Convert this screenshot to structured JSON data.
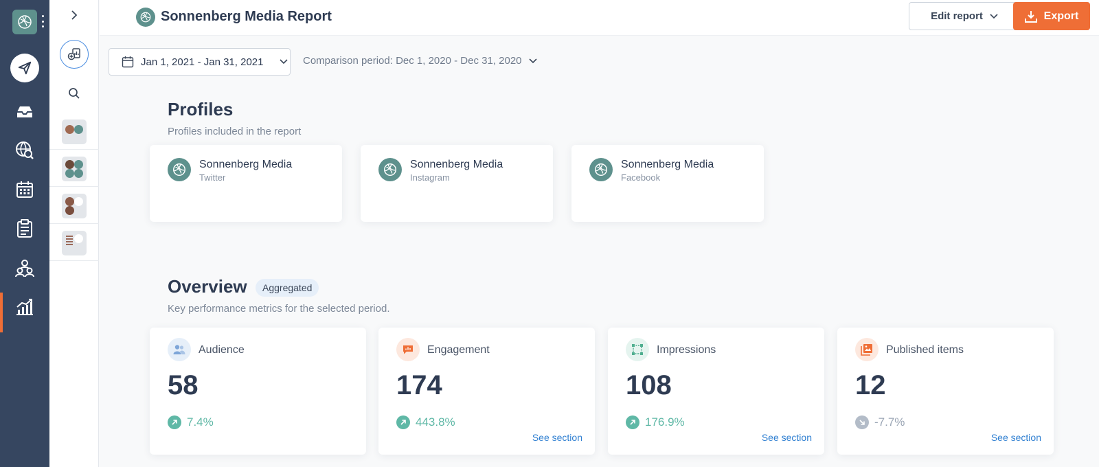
{
  "header": {
    "title": "Sonnenberg Media Report",
    "edit_label": "Edit report",
    "export_label": "Export"
  },
  "filters": {
    "date_range": "Jan 1, 2021 - Jan 31, 2021",
    "comparison": "Comparison period: Dec 1, 2020 - Dec 31, 2020"
  },
  "profiles": {
    "title": "Profiles",
    "subtitle": "Profiles included in the report",
    "items": [
      {
        "name": "Sonnenberg Media",
        "network": "Twitter"
      },
      {
        "name": "Sonnenberg Media",
        "network": "Instagram"
      },
      {
        "name": "Sonnenberg Media",
        "network": "Facebook"
      }
    ]
  },
  "overview": {
    "title": "Overview",
    "tag": "Aggregated",
    "subtitle": "Key performance metrics for the selected period.",
    "metrics": [
      {
        "label": "Audience",
        "value": "58",
        "change": "7.4%",
        "trend": "up",
        "icon": "audience-icon",
        "see_section": ""
      },
      {
        "label": "Engagement",
        "value": "174",
        "change": "443.8%",
        "trend": "up",
        "icon": "engagement-icon",
        "see_section": "See section"
      },
      {
        "label": "Impressions",
        "value": "108",
        "change": "176.9%",
        "trend": "up",
        "icon": "impressions-icon",
        "see_section": "See section"
      },
      {
        "label": "Published items",
        "value": "12",
        "change": "-7.7%",
        "trend": "down",
        "icon": "published-items-icon",
        "see_section": "See section"
      }
    ]
  },
  "colors": {
    "rail": "#364660",
    "accent": "#ef6e36",
    "brand_logo": "#5e918d",
    "positive": "#5fb8a6",
    "negative": "#9aa5b4",
    "link": "#2f7fd1"
  }
}
